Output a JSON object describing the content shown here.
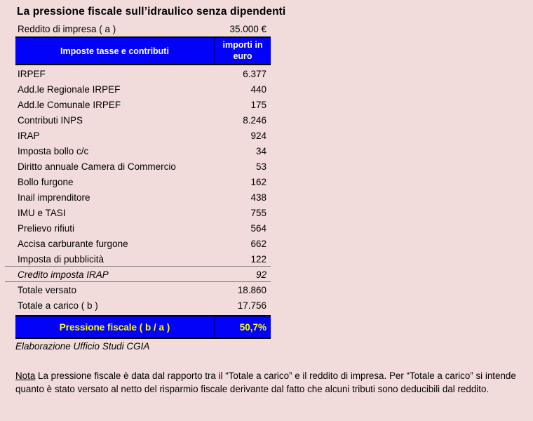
{
  "theme": {
    "page_bg": "#F2DCDB",
    "table_blue": "#0202F8",
    "header_text": "#FFFFFF",
    "accent_yellow": "#FFFF00",
    "line_gray": "#808080",
    "border_black": "#000000",
    "text_black": "#000000"
  },
  "page": {
    "title": "La pressione fiscale sull’idraulico senza dipendenti"
  },
  "income": {
    "label": "Reddito di impresa ( a )",
    "value": "35.000 €"
  },
  "table": {
    "header": {
      "label_col": "Imposte tasse e contributi",
      "value_col": "importi in euro"
    },
    "rows": [
      {
        "label": "IRPEF",
        "value": "6.377"
      },
      {
        "label": "Add.le Regionale IRPEF",
        "value": "440"
      },
      {
        "label": "Add.le Comunale IRPEF",
        "value": "175"
      },
      {
        "label": "Contributi INPS",
        "value": "8.246"
      },
      {
        "label": "IRAP",
        "value": "924"
      },
      {
        "label": "Imposta bollo c/c",
        "value": "34"
      },
      {
        "label": "Diritto annuale Camera di Commercio",
        "value": "53"
      },
      {
        "label": "Bollo furgone",
        "value": "162"
      },
      {
        "label": "Inail imprenditore",
        "value": "438"
      },
      {
        "label": "IMU e TASI",
        "value": "755"
      },
      {
        "label": "Prelievo rifiuti",
        "value": "564"
      },
      {
        "label": "Accisa carburante furgone",
        "value": "662"
      },
      {
        "label": "Imposta di pubblicità",
        "value": "122"
      },
      {
        "label": "Credito imposta IRAP",
        "value": "92"
      },
      {
        "label": "Totale versato",
        "value": "18.860"
      },
      {
        "label": "Totale a carico ( b )",
        "value": "17.756"
      }
    ],
    "footer": {
      "label": "Pressione fiscale ( b / a )",
      "value": "50,7%"
    }
  },
  "source": "Elaborazione Ufficio Studi CGIA",
  "note": {
    "label": "Nota",
    "text": "La pressione fiscale è data dal rapporto tra il “Totale a carico” e il reddito di impresa. Per “Totale a carico” si intende quanto è stato versato al netto del risparmio fiscale derivante dal fatto che alcuni tributi sono deducibili dal reddito."
  }
}
